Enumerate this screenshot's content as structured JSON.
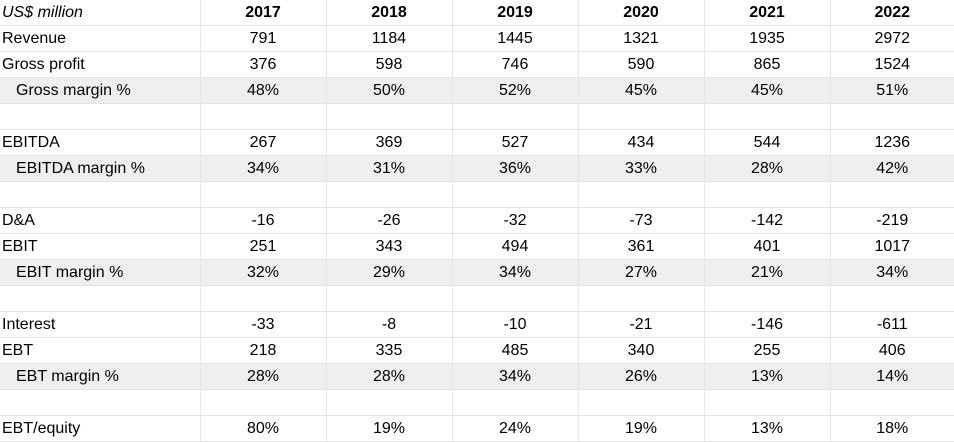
{
  "header": {
    "unit_label": "US$ million",
    "years": [
      "2017",
      "2018",
      "2019",
      "2020",
      "2021",
      "2022"
    ]
  },
  "rows": [
    {
      "label": "Revenue",
      "values": [
        "791",
        "1184",
        "1445",
        "1321",
        "1935",
        "2972"
      ]
    },
    {
      "label": "Gross profit",
      "values": [
        "376",
        "598",
        "746",
        "590",
        "865",
        "1524"
      ]
    },
    {
      "label": "Gross margin %",
      "values": [
        "48%",
        "50%",
        "52%",
        "45%",
        "45%",
        "51%"
      ]
    },
    {
      "label": "",
      "values": [
        "",
        "",
        "",
        "",
        "",
        ""
      ]
    },
    {
      "label": "EBITDA",
      "values": [
        "267",
        "369",
        "527",
        "434",
        "544",
        "1236"
      ]
    },
    {
      "label": "EBITDA margin %",
      "values": [
        "34%",
        "31%",
        "36%",
        "33%",
        "28%",
        "42%"
      ]
    },
    {
      "label": "",
      "values": [
        "",
        "",
        "",
        "",
        "",
        ""
      ]
    },
    {
      "label": "D&A",
      "values": [
        "-16",
        "-26",
        "-32",
        "-73",
        "-142",
        "-219"
      ]
    },
    {
      "label": "EBIT",
      "values": [
        "251",
        "343",
        "494",
        "361",
        "401",
        "1017"
      ]
    },
    {
      "label": "EBIT margin %",
      "values": [
        "32%",
        "29%",
        "34%",
        "27%",
        "21%",
        "34%"
      ]
    },
    {
      "label": "",
      "values": [
        "",
        "",
        "",
        "",
        "",
        ""
      ]
    },
    {
      "label": "Interest",
      "values": [
        "-33",
        "-8",
        "-10",
        "-21",
        "-146",
        "-611"
      ]
    },
    {
      "label": "EBT",
      "values": [
        "218",
        "335",
        "485",
        "340",
        "255",
        "406"
      ]
    },
    {
      "label": "EBT margin %",
      "values": [
        "28%",
        "28%",
        "34%",
        "26%",
        "13%",
        "14%"
      ]
    },
    {
      "label": "",
      "values": [
        "",
        "",
        "",
        "",
        "",
        ""
      ]
    },
    {
      "label": "EBT/equity",
      "values": [
        "80%",
        "19%",
        "24%",
        "19%",
        "13%",
        "18%"
      ]
    }
  ]
}
